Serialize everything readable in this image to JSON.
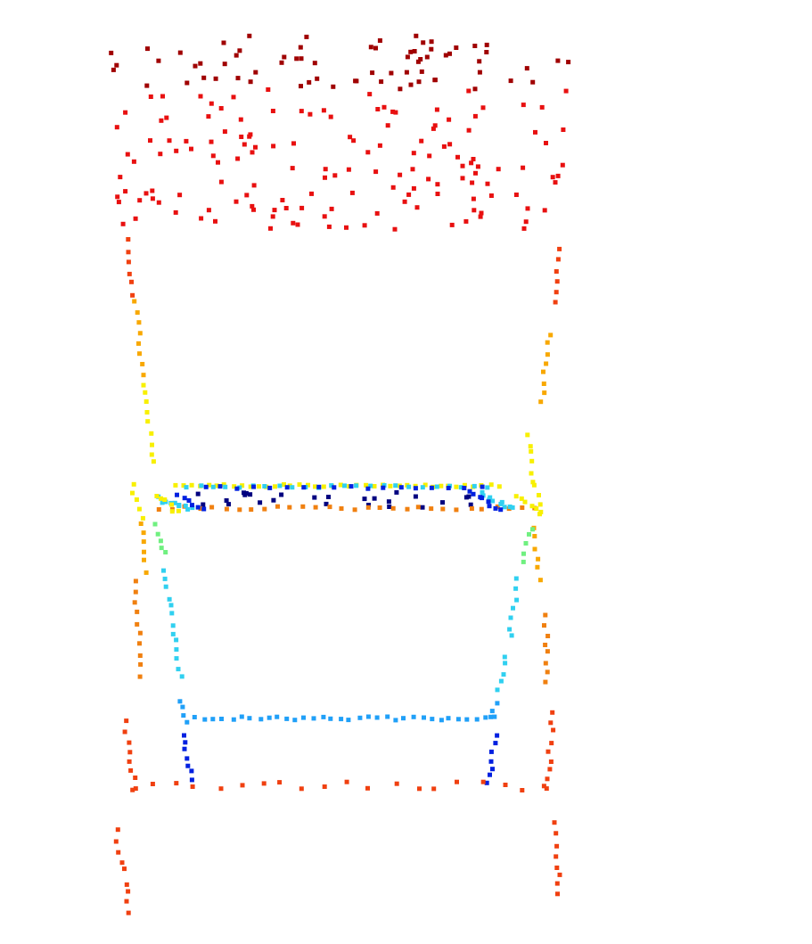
{
  "scene": {
    "subject": "chair",
    "render_style": "point-cloud",
    "colormap": "jet",
    "colors": {
      "dark_red": "#a00000",
      "red": "#e81010",
      "red_orange": "#f04010",
      "orange": "#f08010",
      "amber": "#f8a800",
      "yellow": "#f8f000",
      "yellow_green": "#b0f050",
      "green": "#70f080",
      "cyan": "#30d0f0",
      "sky_blue": "#20a0f8",
      "blue": "#1060f0",
      "medium_blue": "#0020e0",
      "navy": "#000080"
    }
  }
}
